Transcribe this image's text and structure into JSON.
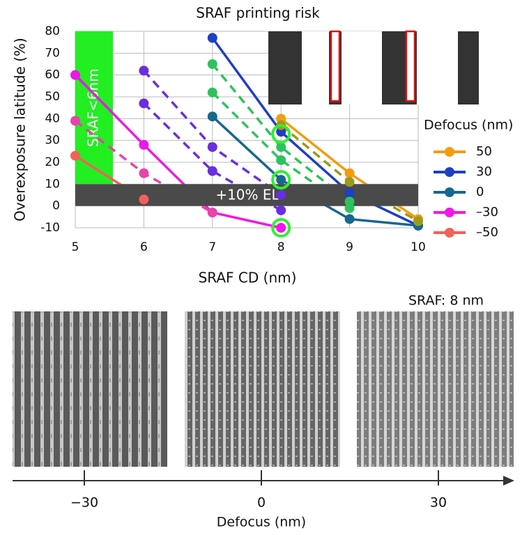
{
  "chart_data": {
    "type": "line",
    "title": "SRAF printing risk",
    "x_label": "SRAF CD (nm)",
    "y_label": "Overexposure latitude (%)",
    "xlim": [
      5,
      10
    ],
    "xticks": [
      5,
      6,
      7,
      8,
      9,
      10
    ],
    "ylim": [
      -10,
      80
    ],
    "yticks": [
      -10,
      0,
      10,
      20,
      30,
      40,
      50,
      60,
      70,
      80
    ],
    "grid": true,
    "legend_title": "Defocus (nm)",
    "legend_position": "right",
    "series": [
      {
        "name": "50",
        "color": "#f39c12",
        "x": [
          8,
          9,
          10
        ],
        "values": [
          40,
          15,
          -6
        ]
      },
      {
        "name": "30",
        "color": "#1f3fc4",
        "x": [
          7,
          8,
          9,
          10
        ],
        "values": [
          77,
          34,
          6,
          -9
        ]
      },
      {
        "name": "0",
        "color": "#17678f",
        "x": [
          7,
          8,
          9,
          10
        ],
        "values": [
          41,
          12,
          -6,
          -9
        ]
      },
      {
        "name": "–30",
        "color": "#ee18e6",
        "x": [
          5,
          6,
          7,
          8
        ],
        "values": [
          60,
          28,
          -3,
          -10
        ]
      },
      {
        "name": "–50",
        "color": "#f2605a",
        "x": [
          5,
          6
        ],
        "values": [
          23,
          3
        ]
      },
      {
        "color": "#9a9a1c",
        "dashed": true,
        "x": [
          8,
          9,
          10
        ],
        "values": [
          37,
          11,
          -7
        ]
      },
      {
        "color": "#2ec25e",
        "dashed": true,
        "x": [
          7,
          8,
          9
        ],
        "values": [
          65,
          27,
          2
        ]
      },
      {
        "color": "#2ec25e",
        "dashed": true,
        "x": [
          7,
          8,
          9
        ],
        "values": [
          52,
          21,
          -1
        ]
      },
      {
        "color": "#6a2ee0",
        "dashed": true,
        "x": [
          6,
          7,
          8
        ],
        "values": [
          62,
          27,
          5
        ]
      },
      {
        "color": "#6a2ee0",
        "dashed": true,
        "x": [
          6,
          7,
          8
        ],
        "values": [
          47,
          16,
          -2
        ]
      },
      {
        "color": "#e545a8",
        "dashed": true,
        "x": [
          5,
          6,
          7
        ],
        "values": [
          39,
          15,
          -3
        ]
      }
    ],
    "sraf_region": {
      "label": "SRAF<6nm",
      "x": [
        5,
        5.55
      ],
      "y": [
        10,
        80
      ],
      "color": "#22ee22"
    },
    "el_band": {
      "label": "+10% EL",
      "y": [
        0,
        10
      ],
      "color": "#4a4a4a"
    },
    "highlight_points": {
      "color": "#33ee33",
      "x": [
        8,
        8,
        8
      ],
      "values": [
        33,
        12,
        -10
      ]
    }
  },
  "sem_panel": {
    "label": "SRAF: 8 nm",
    "axis_title": "Defocus (nm)",
    "ticks": [
      {
        "value": -30,
        "label": "−30"
      },
      0,
      30
    ]
  }
}
